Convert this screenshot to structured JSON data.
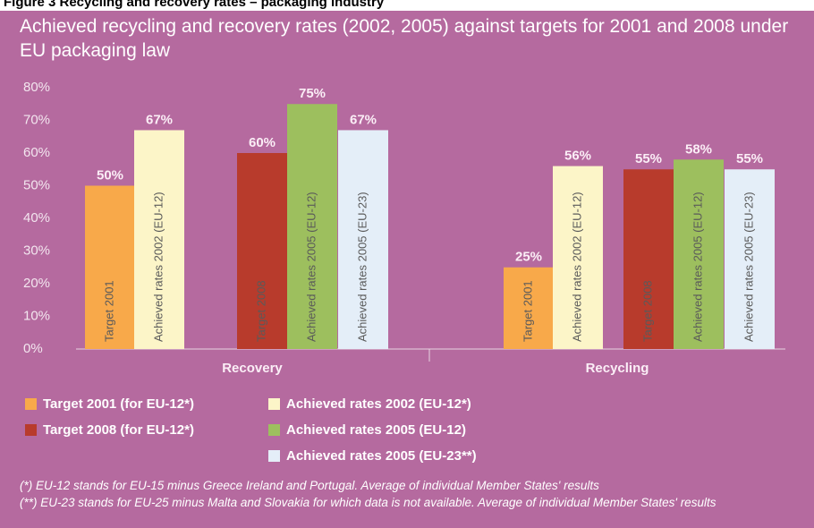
{
  "chart_data": {
    "type": "bar",
    "figure_label": "Figure 3 Recycling and recovery rates – packaging industry",
    "title": "Achieved recycling and recovery rates (2002, 2005) against targets for 2001 and 2008 under EU packaging law",
    "categories": [
      "Recovery",
      "Recycling"
    ],
    "ylim": [
      0,
      80
    ],
    "yticks": [
      {
        "value": 0,
        "label": "0%"
      },
      {
        "value": 10,
        "label": "10%"
      },
      {
        "value": 20,
        "label": "20%"
      },
      {
        "value": 30,
        "label": "30%"
      },
      {
        "value": 40,
        "label": "40%"
      },
      {
        "value": 50,
        "label": "50%"
      },
      {
        "value": 60,
        "label": "60%"
      },
      {
        "value": 70,
        "label": "70%"
      },
      {
        "value": 80,
        "label": "80%"
      }
    ],
    "series": [
      {
        "name": "Target 2001 (for EU-12*)",
        "bar_label": "Target 2001",
        "color": "#f8a94a",
        "values": [
          50,
          25
        ],
        "value_labels": [
          "50%",
          "25%"
        ]
      },
      {
        "name": "Achieved rates 2002 (EU-12*)",
        "bar_label": "Achieved rates 2002 (EU-12)",
        "color": "#fcf5c8",
        "values": [
          67,
          56
        ],
        "value_labels": [
          "67%",
          "56%"
        ]
      },
      {
        "name": "Target 2008 (for EU-12*)",
        "bar_label": "Target 2008",
        "color": "#b83b2c",
        "values": [
          60,
          55
        ],
        "value_labels": [
          "60%",
          "55%"
        ]
      },
      {
        "name": "Achieved rates 2005 (EU-12)",
        "bar_label": "Achieved rates 2005 (EU-12)",
        "color": "#9dbf5e",
        "values": [
          75,
          58
        ],
        "value_labels": [
          "75%",
          "58%"
        ]
      },
      {
        "name": "Achieved rates 2005 (EU-23**)",
        "bar_label": "Achieved rates 2005 (EU-23)",
        "color": "#e4eef8",
        "values": [
          67,
          55
        ],
        "value_labels": [
          "67%",
          "55%"
        ]
      }
    ],
    "notes": [
      "(*)  EU-12 stands for EU-15 minus Greece Ireland and Portugal. Average of individual Member States' results",
      "(**) EU-23 stands for EU-25 minus Malta and Slovakia for which data is not available. Average of individual Member States' results"
    ]
  }
}
